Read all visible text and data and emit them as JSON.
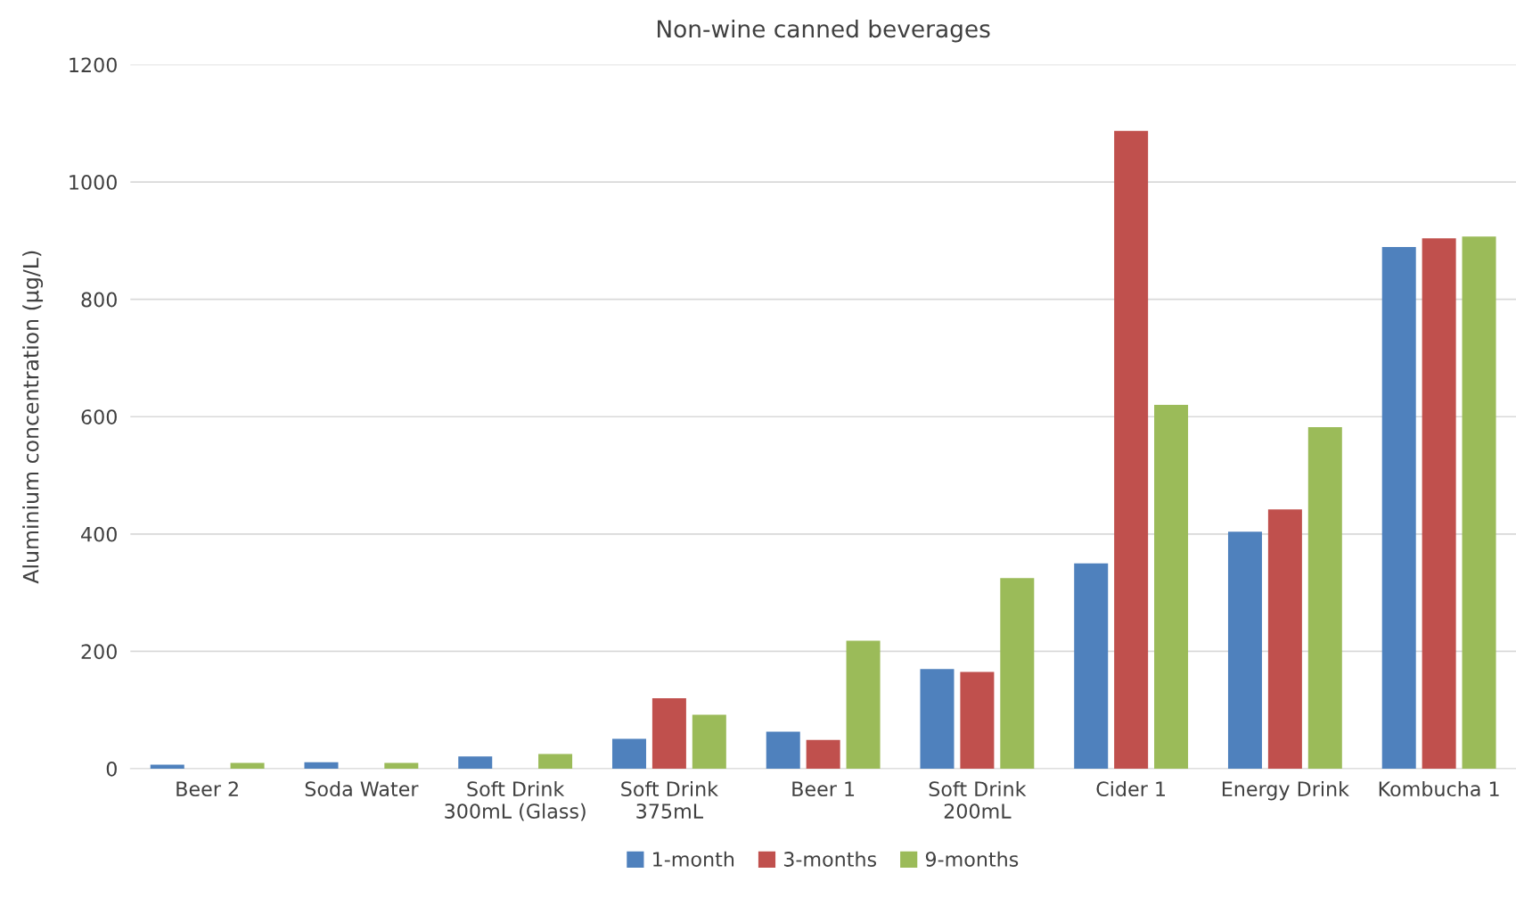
{
  "chart_data": {
    "type": "bar",
    "title": "Non-wine canned beverages",
    "ylabel": "Aluminium concentration (µg/L)",
    "categories": [
      "Beer 2",
      "Soda Water",
      "Soft Drink\n300mL (Glass)",
      "Soft Drink\n375mL",
      "Beer 1",
      "Soft Drink\n200mL",
      "Cider 1",
      "Energy Drink",
      "Kombucha 1"
    ],
    "series": [
      {
        "name": "1-month",
        "color": "#4f81bd",
        "values": [
          7,
          11,
          21,
          51,
          63,
          170,
          350,
          404,
          889
        ]
      },
      {
        "name": "3-months",
        "color": "#c0504d",
        "values": [
          null,
          null,
          null,
          120,
          49,
          165,
          1087,
          442,
          904
        ]
      },
      {
        "name": "9-months",
        "color": "#9bbb59",
        "values": [
          10,
          10,
          25,
          92,
          218,
          325,
          620,
          582,
          907
        ]
      }
    ],
    "ylim": [
      0,
      1200
    ],
    "yticks": [
      0,
      200,
      400,
      600,
      800,
      1000,
      1200
    ],
    "grid": "y",
    "legend": "bottom"
  }
}
